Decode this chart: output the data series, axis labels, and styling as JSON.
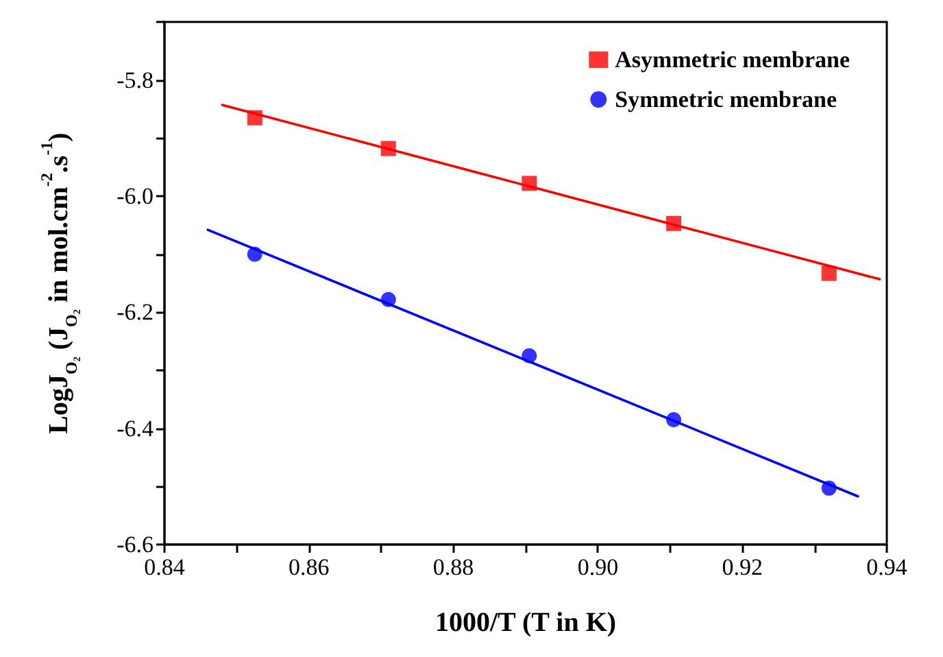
{
  "chart_data": {
    "type": "scatter",
    "xlabel": "1000/T (T in K)",
    "ylabel": "LogJ$_{O₂}$ (J$_{O₂}$ in mol.cm$^{-2}$.s$^{-1}$)",
    "xlim": [
      0.84,
      0.94
    ],
    "ylim": [
      -6.6,
      -5.7
    ],
    "xticks": [
      {
        "value": 0.84,
        "label": "0.84"
      },
      {
        "value": 0.85,
        "label": null
      },
      {
        "value": 0.86,
        "label": "0.86"
      },
      {
        "value": 0.87,
        "label": null
      },
      {
        "value": 0.88,
        "label": "0.88"
      },
      {
        "value": 0.89,
        "label": null
      },
      {
        "value": 0.9,
        "label": "0.90"
      },
      {
        "value": 0.91,
        "label": null
      },
      {
        "value": 0.92,
        "label": "0.92"
      },
      {
        "value": 0.93,
        "label": null
      },
      {
        "value": 0.94,
        "label": "0.94"
      }
    ],
    "yticks": [
      {
        "value": -6.6,
        "label": "-6.6"
      },
      {
        "value": -6.5,
        "label": null
      },
      {
        "value": -6.4,
        "label": "-6.4"
      },
      {
        "value": -6.3,
        "label": null
      },
      {
        "value": -6.2,
        "label": "-6.2"
      },
      {
        "value": -6.1,
        "label": null
      },
      {
        "value": -6.0,
        "label": "-6.0"
      },
      {
        "value": -5.9,
        "label": null
      },
      {
        "value": -5.8,
        "label": "-5.8"
      },
      {
        "value": -5.7,
        "label": null
      }
    ],
    "grid": false,
    "legend": "top right",
    "series": [
      {
        "name": "Asymmetric membrane",
        "marker": "square",
        "color": "#ff0000",
        "x": [
          0.8525,
          0.871,
          0.8905,
          0.9105,
          0.932
        ],
        "values": [
          -5.865,
          -5.918,
          -5.978,
          -6.047,
          -6.133
        ]
      },
      {
        "name": "Symmetric membrane",
        "marker": "circle",
        "color": "#0000ff",
        "x": [
          0.8525,
          0.871,
          0.8905,
          0.9105,
          0.932
        ],
        "values": [
          -6.1,
          -6.178,
          -6.275,
          -6.385,
          -6.503
        ]
      },
      {
        "type": "line",
        "marker": "none",
        "color": "#ff0000",
        "x": [
          0.848,
          0.939
        ],
        "values": [
          -5.843,
          -6.143
        ]
      },
      {
        "type": "line",
        "marker": "none",
        "color": "#0000ff",
        "x": [
          0.846,
          0.936
        ],
        "values": [
          -6.058,
          -6.517
        ]
      }
    ]
  }
}
